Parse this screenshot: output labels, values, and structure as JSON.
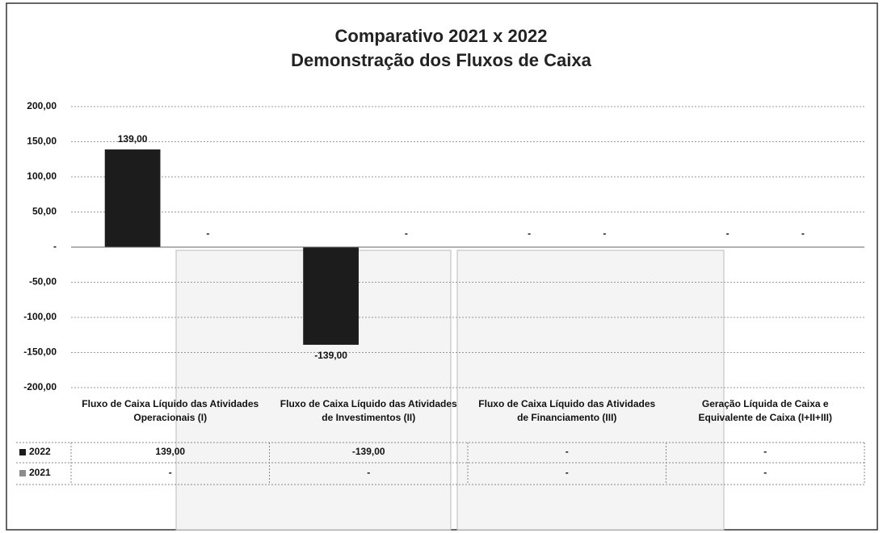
{
  "chart_data": {
    "type": "bar",
    "title": [
      "Comparativo 2021 x 2022",
      "Demonstração dos Fluxos de Caixa"
    ],
    "categories": [
      "Fluxo de Caixa Líquido das Atividades Operacionais (I)",
      "Fluxo de Caixa Líquido das Atividades de Investimentos (II)",
      "Fluxo de Caixa Líquido das Atividades de Financiamento (III)",
      "Geração Líquida de Caixa e Equivalente de Caixa (I+II+III)"
    ],
    "series": [
      {
        "name": "2022",
        "color": "#1c1c1c",
        "values": [
          139,
          -139,
          0,
          0
        ],
        "value_labels": [
          "139,00",
          "-139,00",
          "-",
          "-"
        ]
      },
      {
        "name": "2021",
        "color": "#8c8c8c",
        "values": [
          0,
          0,
          0,
          0
        ],
        "value_labels": [
          "-",
          "-",
          "-",
          "-"
        ]
      }
    ],
    "ylim": [
      -200,
      200
    ],
    "yticks": [
      {
        "value": 200,
        "label": "200,00"
      },
      {
        "value": 150,
        "label": "150,00"
      },
      {
        "value": 100,
        "label": "100,00"
      },
      {
        "value": 50,
        "label": "50,00"
      },
      {
        "value": 0,
        "label": "-"
      },
      {
        "value": -50,
        "label": "-50,00"
      },
      {
        "value": -100,
        "label": "-100,00"
      },
      {
        "value": -150,
        "label": "-150,00"
      },
      {
        "value": -200,
        "label": "-200,00"
      }
    ],
    "grid": true
  }
}
